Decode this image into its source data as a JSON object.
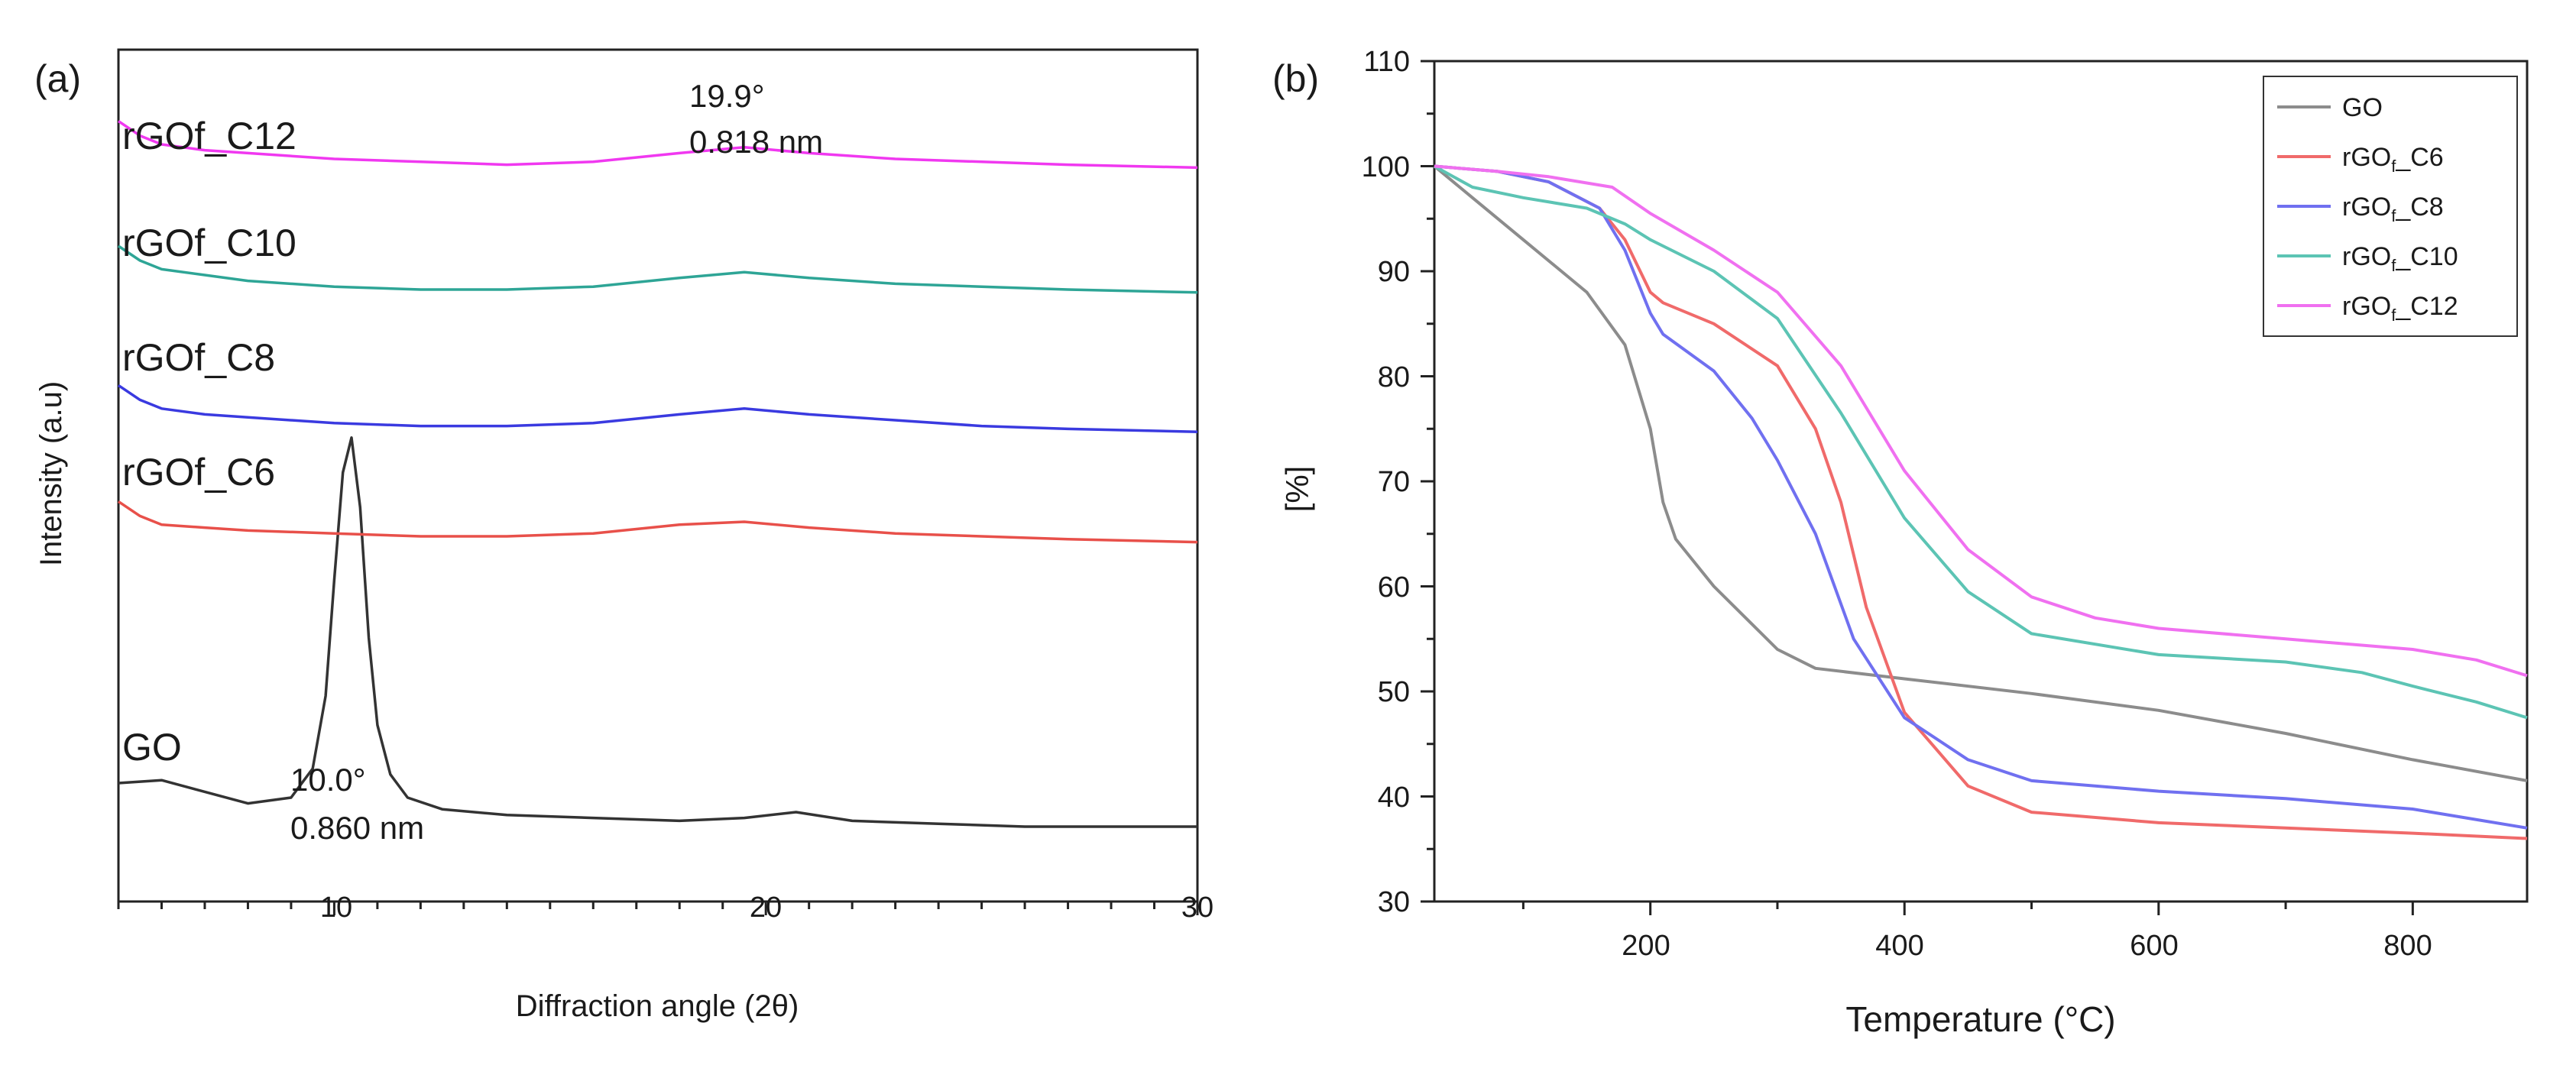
{
  "chart_data": [
    {
      "panel_label": "(a)",
      "type": "line",
      "xlabel": "Diffraction angle (2θ)",
      "ylabel": "Intensity (a.u)",
      "xlim": [
        5,
        30
      ],
      "x_ticks": [
        "10",
        "20",
        "30"
      ],
      "series": [
        {
          "name": "GO",
          "label_text": "GO",
          "color": "#333333",
          "x": [
            5,
            6,
            7,
            8,
            9,
            9.5,
            9.8,
            10.0,
            10.2,
            10.4,
            10.6,
            10.8,
            11.0,
            11.3,
            11.7,
            12.5,
            14,
            16,
            18,
            19.5,
            20.7,
            22,
            24,
            26,
            28,
            30
          ],
          "y": [
            0.25,
            0.26,
            0.22,
            0.18,
            0.2,
            0.3,
            0.55,
            0.95,
            1.32,
            1.44,
            1.2,
            0.75,
            0.45,
            0.28,
            0.2,
            0.16,
            0.14,
            0.13,
            0.12,
            0.13,
            0.15,
            0.12,
            0.11,
            0.1,
            0.1,
            0.1
          ]
        },
        {
          "name": "rGOf_C6",
          "label_text": "rGOf_C6",
          "color": "#e8504a",
          "x": [
            5,
            5.5,
            6,
            7,
            8,
            10,
            12,
            14,
            16,
            18,
            19.5,
            21,
            23,
            25,
            27,
            30
          ],
          "y": [
            1.22,
            1.17,
            1.14,
            1.13,
            1.12,
            1.11,
            1.1,
            1.1,
            1.11,
            1.14,
            1.15,
            1.13,
            1.11,
            1.1,
            1.09,
            1.08
          ]
        },
        {
          "name": "rGOf_C8",
          "label_text": "rGOf_C8",
          "color": "#3a3ae0",
          "x": [
            5,
            5.5,
            6,
            7,
            8,
            10,
            12,
            14,
            16,
            18,
            19.5,
            21,
            23,
            25,
            27,
            30
          ],
          "y": [
            1.62,
            1.57,
            1.54,
            1.52,
            1.51,
            1.49,
            1.48,
            1.48,
            1.49,
            1.52,
            1.54,
            1.52,
            1.5,
            1.48,
            1.47,
            1.46
          ]
        },
        {
          "name": "rGOf_C10",
          "label_text": "rGOf_C10",
          "color": "#2ea596",
          "x": [
            5,
            5.5,
            6,
            7,
            8,
            10,
            12,
            14,
            16,
            18,
            19.5,
            21,
            23,
            25,
            27,
            30
          ],
          "y": [
            2.1,
            2.05,
            2.02,
            2.0,
            1.98,
            1.96,
            1.95,
            1.95,
            1.96,
            1.99,
            2.01,
            1.99,
            1.97,
            1.96,
            1.95,
            1.94
          ]
        },
        {
          "name": "rGOf_C12",
          "label_text": "rGOf_C12",
          "color": "#f038f0",
          "x": [
            5,
            5.5,
            6,
            7,
            8,
            10,
            12,
            14,
            16,
            18,
            19.5,
            21,
            23,
            25,
            27,
            30
          ],
          "y": [
            2.53,
            2.48,
            2.45,
            2.43,
            2.42,
            2.4,
            2.39,
            2.38,
            2.39,
            2.42,
            2.44,
            2.42,
            2.4,
            2.39,
            2.38,
            2.37
          ]
        }
      ],
      "annotations": [
        {
          "line1": "19.9°",
          "line2": "0.818 nm"
        },
        {
          "line1": "10.0°",
          "line2": "0.860 nm"
        }
      ]
    },
    {
      "panel_label": "(b)",
      "type": "line",
      "xlabel": "Temperature (°C)",
      "ylabel": "[%]",
      "xlim": [
        30,
        890
      ],
      "ylim": [
        30,
        110
      ],
      "x_ticks": [
        "200",
        "400",
        "600",
        "800"
      ],
      "y_ticks": [
        "30",
        "40",
        "50",
        "60",
        "70",
        "80",
        "90",
        "100",
        "110"
      ],
      "legend_position": "top-right",
      "series": [
        {
          "name": "GO",
          "color": "#8c8c8c",
          "x": [
            30,
            60,
            100,
            150,
            180,
            200,
            210,
            220,
            250,
            300,
            330,
            400,
            500,
            600,
            700,
            800,
            890
          ],
          "y": [
            100,
            97,
            93,
            88,
            83,
            75,
            68,
            64.5,
            60,
            54,
            52.2,
            51.2,
            49.8,
            48.2,
            46,
            43.5,
            41.5
          ]
        },
        {
          "name": "rGOf_C6",
          "color": "#f06a6a",
          "x": [
            30,
            80,
            120,
            160,
            180,
            200,
            210,
            250,
            300,
            330,
            350,
            370,
            400,
            450,
            500,
            600,
            700,
            800,
            890
          ],
          "y": [
            100,
            99.5,
            98.5,
            96,
            93,
            88,
            87,
            85,
            81,
            75,
            68,
            58,
            48,
            41,
            38.5,
            37.5,
            37,
            36.5,
            36
          ]
        },
        {
          "name": "rGOf_C8",
          "color": "#7070f0",
          "x": [
            30,
            80,
            120,
            160,
            180,
            200,
            210,
            250,
            280,
            300,
            330,
            360,
            400,
            450,
            500,
            600,
            700,
            800,
            890
          ],
          "y": [
            100,
            99.5,
            98.5,
            96,
            92,
            86,
            84,
            80.5,
            76,
            72,
            65,
            55,
            47.5,
            43.5,
            41.5,
            40.5,
            39.8,
            38.8,
            37
          ]
        },
        {
          "name": "rGOf_C10",
          "color": "#5cc4b4",
          "x": [
            30,
            60,
            100,
            150,
            180,
            200,
            250,
            300,
            350,
            400,
            450,
            500,
            600,
            700,
            760,
            800,
            850,
            890
          ],
          "y": [
            100,
            98,
            97,
            96,
            94.5,
            93,
            90,
            85.5,
            76.5,
            66.5,
            59.5,
            55.5,
            53.5,
            52.8,
            51.8,
            50.5,
            49,
            47.5
          ]
        },
        {
          "name": "rGOf_C12",
          "color": "#f070f0",
          "x": [
            30,
            80,
            120,
            170,
            200,
            250,
            300,
            350,
            400,
            450,
            500,
            550,
            600,
            700,
            800,
            850,
            890
          ],
          "y": [
            100,
            99.5,
            99,
            98,
            95.5,
            92,
            88,
            81,
            71,
            63.5,
            59,
            57,
            56,
            55,
            54,
            53,
            51.5
          ]
        }
      ]
    }
  ],
  "legend_b": {
    "items": [
      {
        "main": "GO",
        "sub": "",
        "suffix": ""
      },
      {
        "main": "rGO",
        "sub": "f",
        "suffix": "_C6"
      },
      {
        "main": "rGO",
        "sub": "f",
        "suffix": "_C8"
      },
      {
        "main": "rGO",
        "sub": "f",
        "suffix": "_C10"
      },
      {
        "main": "rGO",
        "sub": "f",
        "suffix": "_C12"
      }
    ]
  }
}
